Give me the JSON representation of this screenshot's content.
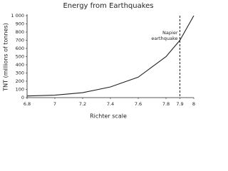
{
  "chart_data": {
    "type": "line",
    "title": "Energy from Earthquakes",
    "x_label": "Richter scale",
    "y_label": "TNT (millions of tonnes)",
    "x": [
      6.8,
      7,
      7.2,
      7.4,
      7.6,
      7.8,
      7.9,
      8
    ],
    "values": [
      20,
      30,
      60,
      130,
      250,
      500,
      700,
      1000
    ],
    "color": "#222222",
    "xlim": [
      6.8,
      8
    ],
    "xticks": [
      6.8,
      7,
      7.2,
      7.4,
      7.6,
      7.8,
      7.9,
      8
    ],
    "ylim": [
      0,
      1000
    ],
    "yticks": [
      0,
      100,
      200,
      300,
      400,
      500,
      600,
      700,
      800,
      900,
      {
        "value": 1000,
        "label": "1 000"
      }
    ],
    "grid": false,
    "annotation": {
      "x": 7.9,
      "text": [
        "Napier",
        "earthquake"
      ]
    }
  }
}
